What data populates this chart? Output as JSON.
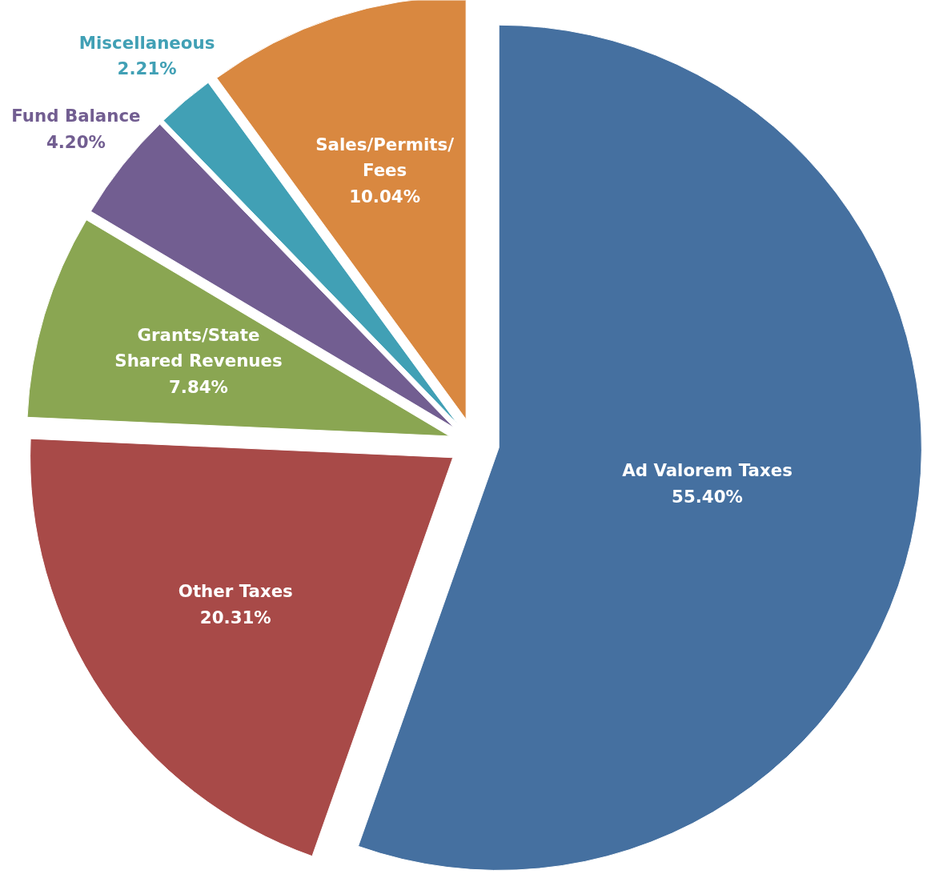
{
  "chart_data": {
    "type": "pie",
    "categories": [
      "Ad Valorem Taxes",
      "Other Taxes",
      "Grants/State Shared Revenues",
      "Fund Balance",
      "Miscellaneous",
      "Sales/Permits/Fees"
    ],
    "values": [
      55.4,
      20.31,
      7.84,
      4.2,
      2.21,
      10.04
    ],
    "value_labels": [
      "55.40%",
      "20.31%",
      "7.84%",
      "4.20%",
      "2.21%",
      "10.04%"
    ],
    "colors": [
      "#4570a0",
      "#a84a48",
      "#8aa652",
      "#725e91",
      "#41a0b5",
      "#d98840"
    ]
  }
}
